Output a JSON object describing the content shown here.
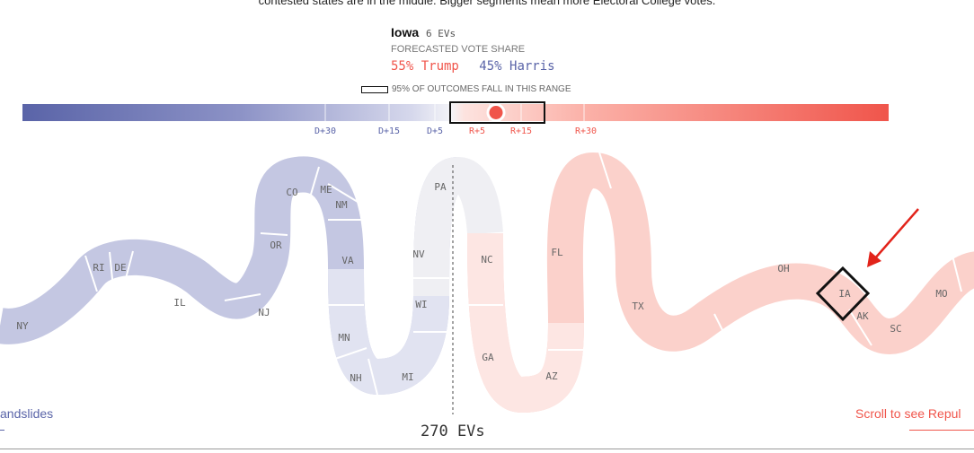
{
  "intro_text": "contested states are in the middle. Bigger segments mean more Electoral College votes.",
  "tooltip": {
    "state": "Iowa",
    "ev": "6 EVs",
    "share_label": "FORECASTED VOTE SHARE",
    "trump": "55% Trump",
    "harris": "45% Harris",
    "range_legend": "95% OF OUTCOMES FALL IN THIS RANGE"
  },
  "scale": {
    "ticks": [
      {
        "label": "D+30",
        "party": "D"
      },
      {
        "label": "D+15",
        "party": "D"
      },
      {
        "label": "D+5",
        "party": "D"
      },
      {
        "label": "R+5",
        "party": "R"
      },
      {
        "label": "R+15",
        "party": "R"
      },
      {
        "label": "R+30",
        "party": "R"
      }
    ],
    "colors": {
      "dem": "#5a64a8",
      "rep": "#f0554b"
    }
  },
  "states": [
    "NY",
    "RI",
    "DE",
    "IL",
    "NJ",
    "OR",
    "CO",
    "ME",
    "NM",
    "VA",
    "MN",
    "NH",
    "NV",
    "WI",
    "MI",
    "PA",
    "NC",
    "GA",
    "FL",
    "AZ",
    "TX",
    "OH",
    "IA",
    "AK",
    "SC",
    "MO"
  ],
  "selected_state": "IA",
  "center_label": "270 EVs",
  "nav": {
    "left": "andslides",
    "right": "Scroll to see Repul"
  }
}
